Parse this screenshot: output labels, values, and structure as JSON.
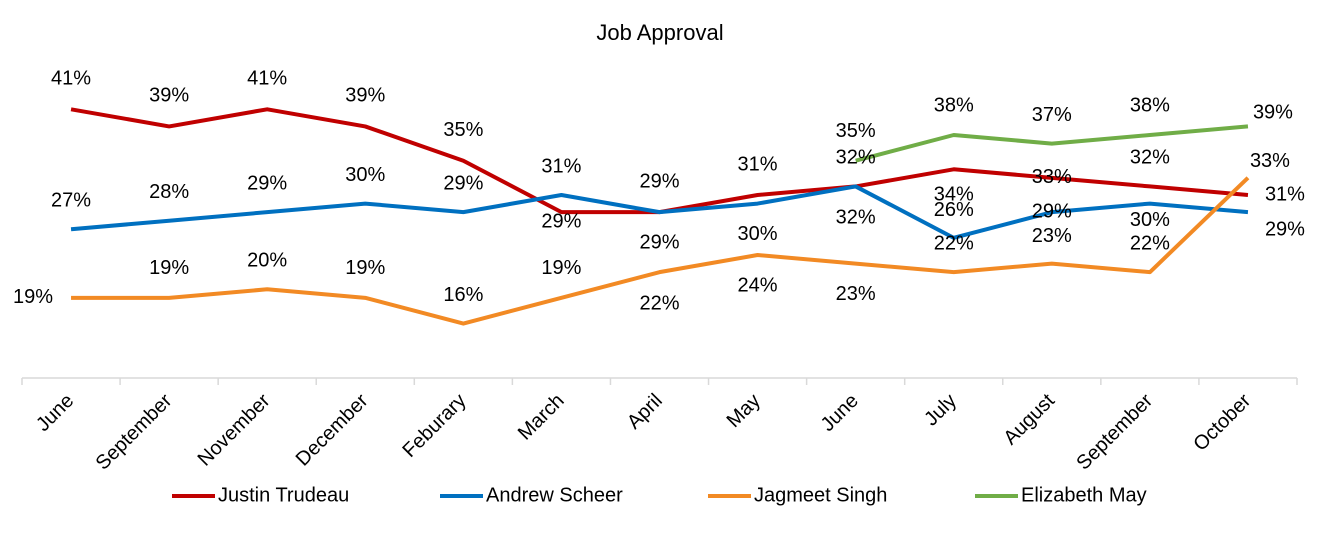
{
  "chart_data": {
    "type": "line",
    "title": "Job Approval",
    "categories": [
      "June",
      "September",
      "November",
      "December",
      "Feburary",
      "March",
      "April",
      "May",
      "June",
      "July",
      "August",
      "September",
      "October"
    ],
    "ylim": [
      10,
      45
    ],
    "grid": false,
    "legend": "bottom",
    "series": [
      {
        "name": "Justin Trudeau",
        "color": "#c00000",
        "values": [
          41,
          39,
          41,
          39,
          35,
          29,
          29,
          31,
          32,
          34,
          33,
          32,
          31
        ],
        "value_labels": [
          "41%",
          "39%",
          "41%",
          "39%",
          "35%",
          "29%",
          "29%",
          "31%",
          "32%",
          "34%",
          "33%",
          "32%",
          "31%"
        ]
      },
      {
        "name": "Andrew Scheer",
        "color": "#0070c0",
        "values": [
          27,
          28,
          29,
          30,
          29,
          31,
          29,
          30,
          32,
          26,
          29,
          30,
          29
        ],
        "value_labels": [
          "27%",
          "28%",
          "29%",
          "30%",
          "29%",
          "31%",
          "29%",
          "30%",
          "32%",
          "26%",
          "29%",
          "30%",
          "29%"
        ]
      },
      {
        "name": "Jagmeet Singh",
        "color": "#f28a24",
        "values": [
          19,
          19,
          20,
          19,
          16,
          19,
          22,
          24,
          23,
          22,
          23,
          22,
          33
        ],
        "value_labels": [
          "19%",
          "19%",
          "20%",
          "19%",
          "16%",
          "19%",
          "22%",
          "24%",
          "23%",
          "22%",
          "23%",
          "22%",
          "33%"
        ]
      },
      {
        "name": "Elizabeth May",
        "color": "#70ad47",
        "values": [
          null,
          null,
          null,
          null,
          null,
          null,
          null,
          null,
          35,
          38,
          37,
          38,
          39
        ],
        "value_labels": [
          null,
          null,
          null,
          null,
          null,
          null,
          null,
          null,
          "35%",
          "38%",
          "37%",
          "38%",
          "39%"
        ]
      }
    ]
  }
}
